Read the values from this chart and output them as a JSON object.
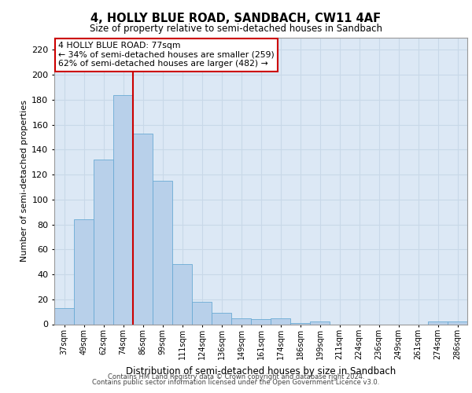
{
  "title_line1": "4, HOLLY BLUE ROAD, SANDBACH, CW11 4AF",
  "title_line2": "Size of property relative to semi-detached houses in Sandbach",
  "xlabel": "Distribution of semi-detached houses by size in Sandbach",
  "ylabel": "Number of semi-detached properties",
  "footer_line1": "Contains HM Land Registry data © Crown copyright and database right 2024.",
  "footer_line2": "Contains public sector information licensed under the Open Government Licence v3.0.",
  "annotation_title": "4 HOLLY BLUE ROAD: 77sqm",
  "annotation_line1": "← 34% of semi-detached houses are smaller (259)",
  "annotation_line2": "62% of semi-detached houses are larger (482) →",
  "categories": [
    "37sqm",
    "49sqm",
    "62sqm",
    "74sqm",
    "86sqm",
    "99sqm",
    "111sqm",
    "124sqm",
    "136sqm",
    "149sqm",
    "161sqm",
    "174sqm",
    "186sqm",
    "199sqm",
    "211sqm",
    "224sqm",
    "236sqm",
    "249sqm",
    "261sqm",
    "274sqm",
    "286sqm"
  ],
  "values": [
    13,
    84,
    132,
    184,
    153,
    115,
    48,
    18,
    9,
    5,
    4,
    5,
    1,
    2,
    0,
    0,
    0,
    0,
    0,
    2,
    2
  ],
  "bar_color": "#b8d0ea",
  "bar_edge_color": "#6aaad4",
  "vline_color": "#cc0000",
  "vline_bin": 3,
  "grid_color": "#c8d8e8",
  "background_color": "#dce8f5",
  "annotation_box_edge_color": "#cc0000",
  "ylim": [
    0,
    230
  ],
  "yticks": [
    0,
    20,
    40,
    60,
    80,
    100,
    120,
    140,
    160,
    180,
    200,
    220
  ]
}
